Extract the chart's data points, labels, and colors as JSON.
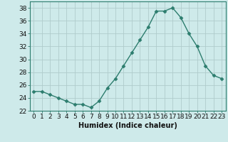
{
  "x": [
    0,
    1,
    2,
    3,
    4,
    5,
    6,
    7,
    8,
    9,
    10,
    11,
    12,
    13,
    14,
    15,
    16,
    17,
    18,
    19,
    20,
    21,
    22,
    23
  ],
  "y": [
    25.0,
    25.0,
    24.5,
    24.0,
    23.5,
    23.0,
    23.0,
    22.5,
    23.5,
    25.5,
    27.0,
    29.0,
    31.0,
    33.0,
    35.0,
    37.5,
    37.5,
    38.0,
    36.5,
    34.0,
    32.0,
    29.0,
    27.5,
    27.0
  ],
  "line_color": "#2d7d6e",
  "marker": "D",
  "marker_size": 2.5,
  "bg_color": "#ceeaea",
  "grid_color": "#b0cccc",
  "xlabel": "Humidex (Indice chaleur)",
  "xlabel_fontsize": 7,
  "tick_fontsize": 6.5,
  "ylim": [
    22,
    39
  ],
  "xlim": [
    -0.5,
    23.5
  ],
  "yticks": [
    22,
    24,
    26,
    28,
    30,
    32,
    34,
    36,
    38
  ],
  "xticks": [
    0,
    1,
    2,
    3,
    4,
    5,
    6,
    7,
    8,
    9,
    10,
    11,
    12,
    13,
    14,
    15,
    16,
    17,
    18,
    19,
    20,
    21,
    22,
    23
  ]
}
